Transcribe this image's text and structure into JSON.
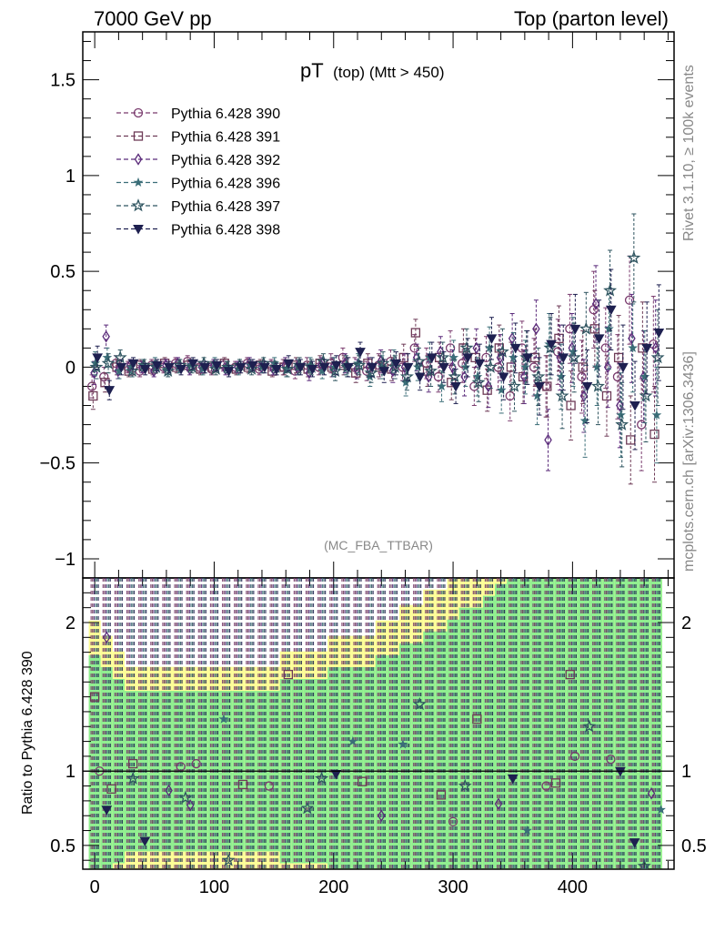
{
  "header": {
    "left": "7000 GeV pp",
    "right": "Top (parton level)"
  },
  "side_labels": {
    "rivet": "Rivet 3.1.10, ≥ 100k events",
    "mcplots": "mcplots.cern.ch [arXiv:1306.3436]"
  },
  "chart_data": [
    {
      "type": "scatter",
      "title_main": "pT",
      "title_sub": "(top) (Mtt > 450)",
      "watermark": "(MC_FBA_TTBAR)",
      "xlim": [
        -10,
        485
      ],
      "ylim": [
        -1.1,
        1.75
      ],
      "yticks": [
        -1,
        -0.5,
        0,
        0.5,
        1,
        1.5
      ],
      "ytick_labels": [
        "−1",
        "−0.5",
        "0",
        "0.5",
        "1",
        "1.5"
      ],
      "legend_position": "top-left",
      "x": [
        0,
        10,
        20,
        30,
        40,
        50,
        60,
        70,
        80,
        90,
        100,
        110,
        120,
        130,
        140,
        150,
        160,
        170,
        180,
        190,
        200,
        210,
        220,
        230,
        240,
        250,
        260,
        270,
        280,
        290,
        300,
        310,
        320,
        330,
        340,
        350,
        360,
        370,
        380,
        390,
        400,
        410,
        420,
        430,
        440,
        450,
        460,
        470
      ],
      "series": [
        {
          "name": "Pythia 6.428 390",
          "color": "#7a3b6e",
          "marker": "circle",
          "y": [
            -0.1,
            -0.05,
            0.02,
            0.0,
            -0.02,
            0.01,
            0.0,
            0.02,
            0.03,
            0.0,
            -0.01,
            0.01,
            0.0,
            0.02,
            -0.01,
            0.01,
            0.0,
            -0.02,
            0.01,
            0.0,
            0.02,
            0.05,
            0.0,
            -0.02,
            0.01,
            0.03,
            0.0,
            0.1,
            0.02,
            -0.05,
            0.1,
            0.02,
            -0.1,
            0.05,
            0.0,
            -0.15,
            0.1,
            0.0,
            -0.1,
            0.08,
            0.2,
            -0.05,
            0.3,
            0.1,
            -0.05,
            0.35,
            -0.3,
            0.12
          ],
          "err": [
            0.06,
            0.05,
            0.04,
            0.03,
            0.03,
            0.03,
            0.03,
            0.03,
            0.03,
            0.03,
            0.03,
            0.03,
            0.03,
            0.03,
            0.03,
            0.03,
            0.04,
            0.04,
            0.04,
            0.04,
            0.05,
            0.05,
            0.05,
            0.05,
            0.06,
            0.06,
            0.07,
            0.07,
            0.08,
            0.08,
            0.09,
            0.1,
            0.1,
            0.11,
            0.12,
            0.13,
            0.14,
            0.15,
            0.16,
            0.17,
            0.18,
            0.19,
            0.2,
            0.21,
            0.22,
            0.23,
            0.24,
            0.25
          ]
        },
        {
          "name": "Pythia 6.428 391",
          "color": "#6e3b57",
          "marker": "square",
          "y": [
            -0.15,
            -0.08,
            0.0,
            -0.02,
            0.01,
            -0.01,
            0.02,
            0.0,
            0.01,
            -0.01,
            0.0,
            0.02,
            -0.01,
            0.0,
            0.01,
            -0.02,
            0.0,
            0.01,
            -0.01,
            0.02,
            0.0,
            0.01,
            -0.03,
            0.02,
            0.0,
            -0.01,
            0.05,
            0.18,
            -0.02,
            0.05,
            -0.08,
            0.1,
            0.05,
            -0.12,
            0.1,
            0.0,
            -0.05,
            0.05,
            -0.1,
            0.15,
            -0.2,
            0.0,
            0.2,
            -0.15,
            0.05,
            -0.38,
            0.1,
            -0.35
          ],
          "err": [
            0.07,
            0.05,
            0.04,
            0.03,
            0.03,
            0.03,
            0.03,
            0.03,
            0.03,
            0.03,
            0.03,
            0.03,
            0.03,
            0.03,
            0.03,
            0.03,
            0.04,
            0.04,
            0.04,
            0.04,
            0.05,
            0.05,
            0.05,
            0.05,
            0.06,
            0.06,
            0.07,
            0.07,
            0.08,
            0.08,
            0.09,
            0.1,
            0.1,
            0.11,
            0.12,
            0.13,
            0.14,
            0.15,
            0.16,
            0.17,
            0.18,
            0.19,
            0.2,
            0.21,
            0.22,
            0.23,
            0.24,
            0.25
          ]
        },
        {
          "name": "Pythia 6.428 392",
          "color": "#5a2a7a",
          "marker": "diamond",
          "y": [
            -0.03,
            0.16,
            -0.02,
            0.01,
            0.0,
            -0.02,
            0.01,
            0.02,
            -0.01,
            0.0,
            0.01,
            -0.01,
            0.0,
            0.02,
            0.0,
            -0.01,
            0.01,
            0.0,
            -0.03,
            0.01,
            0.0,
            0.02,
            -0.01,
            0.0,
            0.03,
            -0.02,
            0.0,
            0.05,
            -0.05,
            0.08,
            0.0,
            -0.05,
            0.1,
            -0.1,
            0.05,
            0.15,
            -0.05,
            0.2,
            -0.38,
            0.05,
            0.1,
            -0.15,
            0.33,
            0.0,
            -0.2,
            0.15,
            -0.05,
            0.1
          ],
          "err": [
            0.06,
            0.06,
            0.04,
            0.03,
            0.03,
            0.03,
            0.03,
            0.03,
            0.03,
            0.03,
            0.03,
            0.03,
            0.03,
            0.03,
            0.03,
            0.03,
            0.04,
            0.04,
            0.04,
            0.04,
            0.05,
            0.05,
            0.05,
            0.05,
            0.06,
            0.06,
            0.07,
            0.07,
            0.08,
            0.08,
            0.09,
            0.1,
            0.1,
            0.11,
            0.12,
            0.13,
            0.14,
            0.15,
            0.16,
            0.17,
            0.18,
            0.19,
            0.2,
            0.21,
            0.22,
            0.23,
            0.24,
            0.25
          ]
        },
        {
          "name": "Pythia 6.428 396",
          "color": "#3b6e78",
          "marker": "star-small",
          "y": [
            0.02,
            0.05,
            -0.02,
            0.0,
            0.01,
            0.02,
            -0.01,
            0.0,
            0.01,
            -0.01,
            0.02,
            0.0,
            -0.01,
            0.01,
            0.0,
            0.02,
            -0.01,
            0.0,
            0.01,
            -0.02,
            0.0,
            0.01,
            0.02,
            -0.05,
            0.0,
            0.03,
            -0.08,
            0.0,
            0.05,
            -0.1,
            0.05,
            0.0,
            -0.05,
            0.1,
            -0.12,
            0.05,
            0.0,
            -0.15,
            0.12,
            -0.05,
            0.08,
            -0.28,
            0.0,
            0.2,
            -0.25,
            0.1,
            -0.05,
            -0.25
          ],
          "err": [
            0.06,
            0.05,
            0.04,
            0.03,
            0.03,
            0.03,
            0.03,
            0.03,
            0.03,
            0.03,
            0.03,
            0.03,
            0.03,
            0.03,
            0.03,
            0.03,
            0.04,
            0.04,
            0.04,
            0.04,
            0.05,
            0.05,
            0.05,
            0.05,
            0.06,
            0.06,
            0.07,
            0.07,
            0.08,
            0.08,
            0.09,
            0.1,
            0.1,
            0.11,
            0.12,
            0.13,
            0.14,
            0.15,
            0.16,
            0.17,
            0.18,
            0.19,
            0.2,
            0.21,
            0.22,
            0.23,
            0.24,
            0.25
          ]
        },
        {
          "name": "Pythia 6.428 397",
          "color": "#2f5560",
          "marker": "star",
          "y": [
            0.0,
            0.02,
            0.05,
            -0.02,
            0.01,
            0.0,
            -0.02,
            0.01,
            0.0,
            0.02,
            -0.01,
            0.0,
            0.01,
            -0.01,
            0.02,
            0.0,
            -0.01,
            0.01,
            0.0,
            0.03,
            -0.02,
            0.0,
            0.01,
            -0.03,
            0.02,
            0.0,
            -0.05,
            0.03,
            -0.02,
            0.05,
            -0.05,
            0.1,
            -0.08,
            0.0,
            0.08,
            -0.1,
            0.05,
            -0.05,
            0.1,
            -0.15,
            0.05,
            0.2,
            -0.1,
            0.4,
            -0.3,
            0.57,
            -0.15,
            0.05
          ],
          "err": [
            0.06,
            0.05,
            0.04,
            0.03,
            0.03,
            0.03,
            0.03,
            0.03,
            0.03,
            0.03,
            0.03,
            0.03,
            0.03,
            0.03,
            0.03,
            0.03,
            0.04,
            0.04,
            0.04,
            0.04,
            0.05,
            0.05,
            0.05,
            0.05,
            0.06,
            0.06,
            0.07,
            0.07,
            0.08,
            0.08,
            0.09,
            0.1,
            0.1,
            0.11,
            0.12,
            0.13,
            0.14,
            0.15,
            0.16,
            0.17,
            0.18,
            0.19,
            0.2,
            0.21,
            0.22,
            0.23,
            0.24,
            0.25
          ]
        },
        {
          "name": "Pythia 6.428 398",
          "color": "#1e2050",
          "marker": "triangle-down",
          "y": [
            0.05,
            -0.12,
            0.0,
            0.02,
            -0.01,
            0.01,
            0.0,
            -0.01,
            0.02,
            0.0,
            0.01,
            -0.02,
            0.0,
            0.01,
            0.0,
            -0.01,
            0.02,
            0.0,
            -0.01,
            0.0,
            0.01,
            0.0,
            0.08,
            0.0,
            -0.02,
            0.02,
            0.0,
            -0.05,
            0.05,
            0.0,
            -0.1,
            0.05,
            0.02,
            0.15,
            -0.05,
            0.1,
            0.05,
            -0.1,
            0.12,
            0.05,
            0.2,
            -0.1,
            0.15,
            0.3,
            0.0,
            -0.2,
            0.1,
            0.18
          ],
          "err": [
            0.06,
            0.05,
            0.04,
            0.03,
            0.03,
            0.03,
            0.03,
            0.03,
            0.03,
            0.03,
            0.03,
            0.03,
            0.03,
            0.03,
            0.03,
            0.03,
            0.04,
            0.04,
            0.04,
            0.04,
            0.05,
            0.05,
            0.05,
            0.05,
            0.06,
            0.06,
            0.07,
            0.07,
            0.08,
            0.08,
            0.09,
            0.1,
            0.1,
            0.11,
            0.12,
            0.13,
            0.14,
            0.15,
            0.16,
            0.17,
            0.18,
            0.19,
            0.2,
            0.21,
            0.22,
            0.23,
            0.24,
            0.25
          ]
        }
      ]
    },
    {
      "type": "scatter",
      "ylabel": "Ratio to Pythia 6.428 390",
      "xlim": [
        -10,
        485
      ],
      "ylim": [
        0.34,
        2.3
      ],
      "xticks": [
        0,
        100,
        200,
        300,
        400
      ],
      "xtick_labels": [
        "0",
        "100",
        "200",
        "300",
        "400"
      ],
      "yticks": [
        0.5,
        1,
        2
      ],
      "ytick_labels": [
        "0.5",
        "1",
        "2"
      ],
      "reference_line": 1,
      "band_colors": {
        "outer": "#fdfd96",
        "inner": "#90ee90"
      },
      "ratio_points": [
        {
          "x": 0,
          "y": 1.5,
          "series": 1
        },
        {
          "x": 4,
          "y": 1.0,
          "series": 0
        },
        {
          "x": 10,
          "y": 1.9,
          "series": 2
        },
        {
          "x": 10,
          "y": 0.74,
          "series": 5
        },
        {
          "x": 14,
          "y": 0.88,
          "series": 1
        },
        {
          "x": 32,
          "y": 1.05,
          "series": 1
        },
        {
          "x": 32,
          "y": 0.95,
          "series": 4
        },
        {
          "x": 42,
          "y": 0.53,
          "series": 5
        },
        {
          "x": 62,
          "y": 0.87,
          "series": 2
        },
        {
          "x": 72,
          "y": 1.03,
          "series": 0
        },
        {
          "x": 76,
          "y": 0.82,
          "series": 4
        },
        {
          "x": 80,
          "y": 0.77,
          "series": 2
        },
        {
          "x": 85,
          "y": 1.05,
          "series": 0
        },
        {
          "x": 108,
          "y": 1.35,
          "series": 3
        },
        {
          "x": 112,
          "y": 0.4,
          "series": 4
        },
        {
          "x": 124,
          "y": 0.91,
          "series": 1
        },
        {
          "x": 146,
          "y": 0.9,
          "series": 0
        },
        {
          "x": 162,
          "y": 1.65,
          "series": 1
        },
        {
          "x": 178,
          "y": 0.75,
          "series": 4
        },
        {
          "x": 190,
          "y": 0.95,
          "series": 4
        },
        {
          "x": 202,
          "y": 0.98,
          "series": 5
        },
        {
          "x": 216,
          "y": 1.2,
          "series": 3
        },
        {
          "x": 224,
          "y": 0.93,
          "series": 1
        },
        {
          "x": 240,
          "y": 0.7,
          "series": 2
        },
        {
          "x": 258,
          "y": 1.18,
          "series": 3
        },
        {
          "x": 272,
          "y": 1.45,
          "series": 4
        },
        {
          "x": 290,
          "y": 0.84,
          "series": 1
        },
        {
          "x": 300,
          "y": 0.66,
          "series": 0
        },
        {
          "x": 310,
          "y": 0.9,
          "series": 4
        },
        {
          "x": 320,
          "y": 1.35,
          "series": 1
        },
        {
          "x": 338,
          "y": 0.78,
          "series": 2
        },
        {
          "x": 350,
          "y": 0.95,
          "series": 5
        },
        {
          "x": 362,
          "y": 0.6,
          "series": 3
        },
        {
          "x": 378,
          "y": 0.9,
          "series": 0
        },
        {
          "x": 386,
          "y": 0.92,
          "series": 1
        },
        {
          "x": 398,
          "y": 1.65,
          "series": 1
        },
        {
          "x": 402,
          "y": 1.1,
          "series": 0
        },
        {
          "x": 414,
          "y": 1.3,
          "series": 4
        },
        {
          "x": 432,
          "y": 1.08,
          "series": 0
        },
        {
          "x": 440,
          "y": 1.0,
          "series": 5
        },
        {
          "x": 452,
          "y": 0.52,
          "series": 5
        },
        {
          "x": 460,
          "y": 0.36,
          "series": 4
        },
        {
          "x": 466,
          "y": 0.85,
          "series": 2
        },
        {
          "x": 474,
          "y": 0.74,
          "series": 3
        }
      ]
    }
  ]
}
